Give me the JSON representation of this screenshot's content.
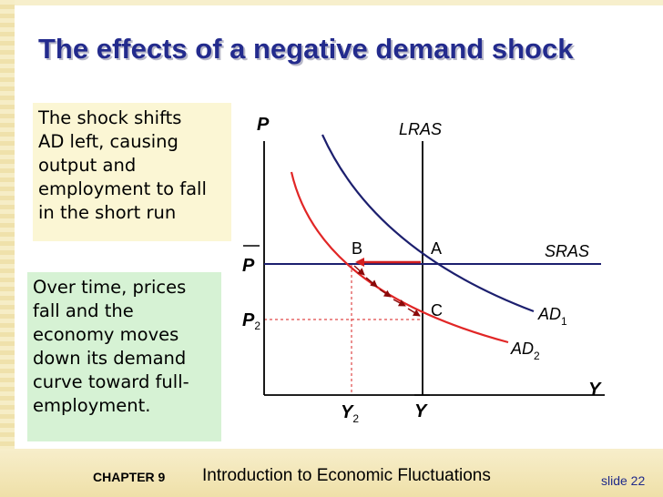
{
  "slide": {
    "title": "The effects of a negative demand shock",
    "explanation_box_1": [
      "The shock shifts",
      "AD left, causing",
      "output and",
      "employment to fall",
      "in the short run"
    ],
    "explanation_box_2": [
      "Over time, prices",
      "fall and the",
      "economy moves",
      "down its demand",
      "curve toward full-",
      "employment."
    ],
    "footer": {
      "chapter": "CHAPTER 9",
      "chapter_title": "Introduction to Economic Fluctuations",
      "slide_number": "slide 22"
    }
  },
  "diagram": {
    "axis_y_label": "P",
    "axis_x_label": "Y",
    "curve_labels": {
      "lras": "LRAS",
      "sras": "SRAS",
      "ad1_main": "AD",
      "ad1_sub": "1",
      "ad2_main": "AD",
      "ad2_sub": "2"
    },
    "points": {
      "a": "A",
      "b": "B",
      "c": "C"
    },
    "price_ticks": {
      "p_bar": "P",
      "p2_main": "P",
      "p2_sub": "2"
    },
    "output_ticks": {
      "y2_main": "Y",
      "y2_sub": "2",
      "y_bar": "Y"
    },
    "colors": {
      "ad1": "#1c1f6e",
      "ad2": "#e12626",
      "arrows": "#8b0a0a",
      "axes": "#000000",
      "guides": "#e04848",
      "title": "#232b8d"
    }
  }
}
